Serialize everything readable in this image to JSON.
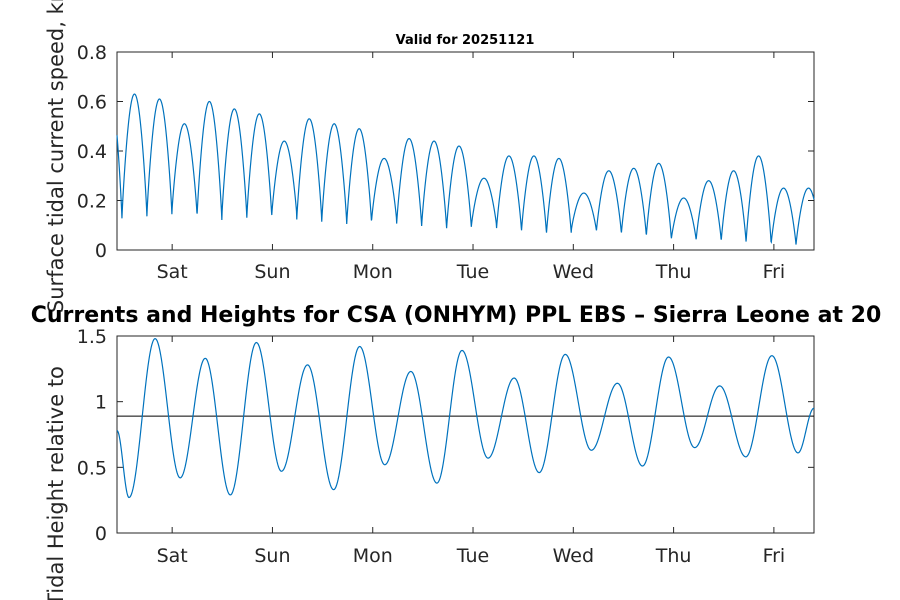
{
  "chart_data": [
    {
      "type": "line",
      "title": "Valid for 20251121",
      "ylabel": "Surface tidal current speed, kn",
      "xlabel": "",
      "ylim": [
        0,
        0.8
      ],
      "yticks": [
        0,
        0.2,
        0.4,
        0.6,
        0.8
      ],
      "ytick_labels": [
        "0",
        "0.2",
        "0.4",
        "0.6",
        "0.8"
      ],
      "xlim_days": [
        0,
        6.95
      ],
      "xticks": [
        {
          "day": 0.55,
          "label": "Sat"
        },
        {
          "day": 1.55,
          "label": "Sun"
        },
        {
          "day": 2.55,
          "label": "Mon"
        },
        {
          "day": 3.55,
          "label": "Tue"
        },
        {
          "day": 4.55,
          "label": "Wed"
        },
        {
          "day": 5.55,
          "label": "Thu"
        },
        {
          "day": 6.55,
          "label": "Fri"
        }
      ],
      "series": [
        {
          "name": "current speed",
          "color": "#0072BD",
          "peaks": [
            0.66,
            0.63,
            0.61,
            0.51,
            0.6,
            0.57,
            0.55,
            0.44,
            0.53,
            0.51,
            0.49,
            0.37,
            0.45,
            0.44,
            0.42,
            0.29,
            0.38,
            0.38,
            0.37,
            0.23,
            0.32,
            0.33,
            0.35,
            0.21,
            0.28,
            0.32,
            0.38,
            0.25
          ],
          "troughs": [
            0.12,
            0.13,
            0.14,
            0.15,
            0.12,
            0.13,
            0.13,
            0.14,
            0.12,
            0.11,
            0.1,
            0.12,
            0.1,
            0.09,
            0.08,
            0.1,
            0.08,
            0.07,
            0.06,
            0.08,
            0.07,
            0.06,
            0.05,
            0.04,
            0.04,
            0.03,
            0.03,
            0.02
          ]
        }
      ]
    },
    {
      "type": "line",
      "title": "Currents and Heights for CSA (ONHYM) PPL EBS  – Sierra Leone at 20",
      "ylabel": "Tidal Height relative to",
      "xlabel": "",
      "ylim": [
        0,
        1.5
      ],
      "yticks": [
        0,
        0.5,
        1,
        1.5
      ],
      "ytick_labels": [
        "0",
        "0.5",
        "1",
        "1.5"
      ],
      "xlim_days": [
        0,
        6.95
      ],
      "mean_level": 0.89,
      "xticks": [
        {
          "day": 0.55,
          "label": "Sat"
        },
        {
          "day": 1.55,
          "label": "Sun"
        },
        {
          "day": 2.55,
          "label": "Mon"
        },
        {
          "day": 3.55,
          "label": "Tue"
        },
        {
          "day": 4.55,
          "label": "Wed"
        },
        {
          "day": 5.55,
          "label": "Thu"
        },
        {
          "day": 6.55,
          "label": "Fri"
        }
      ],
      "series": [
        {
          "name": "tidal height",
          "color": "#0072BD",
          "start_value": 0.78,
          "extremes": [
            {
              "day": 0.12,
              "value": 0.27
            },
            {
              "day": 0.38,
              "value": 1.48
            },
            {
              "day": 0.63,
              "value": 0.42
            },
            {
              "day": 0.88,
              "value": 1.33
            },
            {
              "day": 1.13,
              "value": 0.29
            },
            {
              "day": 1.39,
              "value": 1.45
            },
            {
              "day": 1.64,
              "value": 0.47
            },
            {
              "day": 1.9,
              "value": 1.28
            },
            {
              "day": 2.16,
              "value": 0.33
            },
            {
              "day": 2.42,
              "value": 1.42
            },
            {
              "day": 2.67,
              "value": 0.52
            },
            {
              "day": 2.93,
              "value": 1.23
            },
            {
              "day": 3.19,
              "value": 0.38
            },
            {
              "day": 3.44,
              "value": 1.39
            },
            {
              "day": 3.7,
              "value": 0.57
            },
            {
              "day": 3.96,
              "value": 1.18
            },
            {
              "day": 4.21,
              "value": 0.46
            },
            {
              "day": 4.47,
              "value": 1.36
            },
            {
              "day": 4.73,
              "value": 0.63
            },
            {
              "day": 4.99,
              "value": 1.14
            },
            {
              "day": 5.24,
              "value": 0.51
            },
            {
              "day": 5.5,
              "value": 1.34
            },
            {
              "day": 5.76,
              "value": 0.65
            },
            {
              "day": 6.01,
              "value": 1.12
            },
            {
              "day": 6.27,
              "value": 0.58
            },
            {
              "day": 6.53,
              "value": 1.35
            },
            {
              "day": 6.79,
              "value": 0.61
            }
          ],
          "end_value": 0.95
        }
      ]
    }
  ]
}
